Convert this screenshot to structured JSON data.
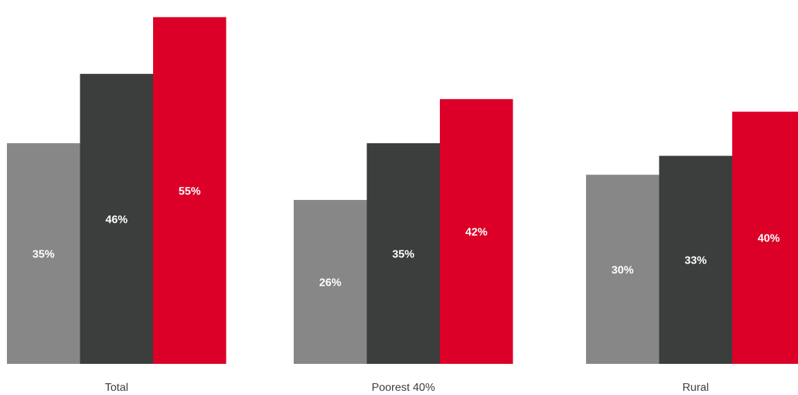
{
  "chart_data": {
    "type": "bar",
    "categories": [
      "Total",
      "Poorest 40%",
      "Rural"
    ],
    "series": [
      {
        "values": [
          35,
          26,
          30
        ],
        "labels": [
          "35%",
          "26%",
          "30%"
        ],
        "color": "#878787"
      },
      {
        "values": [
          46,
          35,
          33
        ],
        "labels": [
          "46%",
          "35%",
          "33%"
        ],
        "color": "#3c3d3d"
      },
      {
        "values": [
          55,
          42,
          40
        ],
        "labels": [
          "55%",
          "42%",
          "40%"
        ],
        "color": "#dc0028"
      }
    ],
    "ylim": [
      0,
      56.4
    ],
    "grid": false,
    "legend": "none",
    "title": "",
    "xlabel": "",
    "ylabel": ""
  }
}
